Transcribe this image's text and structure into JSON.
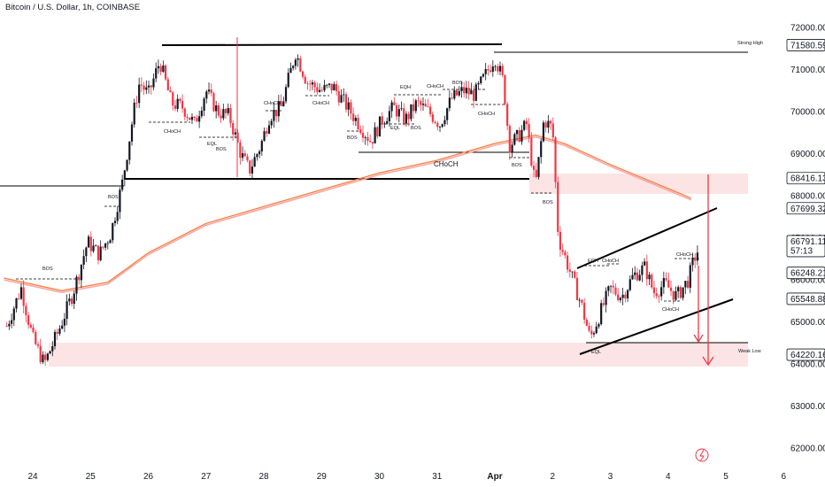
{
  "title": "Bitcoin / U.S. Dollar, 1h, COINBASE",
  "colors": {
    "up": "#131722",
    "down": "#f23645",
    "ma_fast": "#f57f3d",
    "ma_slow": "#f7a8a8",
    "zone": "#fde4e4",
    "arrow": "#f23645"
  },
  "chart_data": {
    "type": "candlestick",
    "xlabels": [
      "24",
      "25",
      "26",
      "27",
      "28",
      "29",
      "30",
      "31",
      "Apr",
      "2",
      "3",
      "4",
      "5",
      "6"
    ],
    "ylim": [
      61800,
      72400
    ],
    "yticks": [
      "72000.00",
      "71000.00",
      "70000.00",
      "69000.00",
      "68000.00",
      "67000.00",
      "66000.00",
      "65000.00",
      "64000.00",
      "63000.00",
      "62000.00"
    ],
    "price_tags": [
      {
        "label": "71580.59",
        "value": 71580.59
      },
      {
        "label": "68416.13",
        "value": 68416.13
      },
      {
        "label": "67699.32",
        "value": 67699.32
      },
      {
        "label": "66791.11",
        "value": 66791.11,
        "extra": "57:13"
      },
      {
        "label": "66248.21",
        "value": 66248.21
      },
      {
        "label": "65548.88",
        "value": 65548.88
      },
      {
        "label": "64220.16",
        "value": 64220.16
      }
    ],
    "close_series": [
      {
        "day": 23.55,
        "price": 64900
      },
      {
        "day": 23.8,
        "price": 65800
      },
      {
        "day": 24.0,
        "price": 64600
      },
      {
        "day": 24.2,
        "price": 64000
      },
      {
        "day": 24.45,
        "price": 64800
      },
      {
        "day": 24.7,
        "price": 65700
      },
      {
        "day": 24.95,
        "price": 66900
      },
      {
        "day": 25.15,
        "price": 66600
      },
      {
        "day": 25.35,
        "price": 67100
      },
      {
        "day": 25.55,
        "price": 68300
      },
      {
        "day": 25.75,
        "price": 70000
      },
      {
        "day": 25.85,
        "price": 70700
      },
      {
        "day": 26.0,
        "price": 70400
      },
      {
        "day": 26.2,
        "price": 71200
      },
      {
        "day": 26.4,
        "price": 70200
      },
      {
        "day": 26.6,
        "price": 70100
      },
      {
        "day": 26.8,
        "price": 69700
      },
      {
        "day": 27.0,
        "price": 70500
      },
      {
        "day": 27.2,
        "price": 70000
      },
      {
        "day": 27.4,
        "price": 69900
      },
      {
        "day": 27.6,
        "price": 69000
      },
      {
        "day": 27.75,
        "price": 68600
      },
      {
        "day": 27.95,
        "price": 69200
      },
      {
        "day": 28.1,
        "price": 69900
      },
      {
        "day": 28.3,
        "price": 70100
      },
      {
        "day": 28.55,
        "price": 71400
      },
      {
        "day": 28.75,
        "price": 70700
      },
      {
        "day": 29.0,
        "price": 70500
      },
      {
        "day": 29.2,
        "price": 70600
      },
      {
        "day": 29.4,
        "price": 70200
      },
      {
        "day": 29.6,
        "price": 69800
      },
      {
        "day": 29.85,
        "price": 69300
      },
      {
        "day": 30.05,
        "price": 69800
      },
      {
        "day": 30.25,
        "price": 70100
      },
      {
        "day": 30.45,
        "price": 69800
      },
      {
        "day": 30.65,
        "price": 70200
      },
      {
        "day": 30.85,
        "price": 70000
      },
      {
        "day": 31.05,
        "price": 69700
      },
      {
        "day": 31.25,
        "price": 70300
      },
      {
        "day": 31.45,
        "price": 70500
      },
      {
        "day": 31.65,
        "price": 70400
      },
      {
        "day": 31.85,
        "price": 70900
      },
      {
        "day": 32.0,
        "price": 71300
      },
      {
        "day": 32.15,
        "price": 70700
      },
      {
        "day": 32.25,
        "price": 69200
      },
      {
        "day": 32.4,
        "price": 69400
      },
      {
        "day": 32.55,
        "price": 69700
      },
      {
        "day": 32.7,
        "price": 68200
      },
      {
        "day": 32.85,
        "price": 69800
      },
      {
        "day": 33.0,
        "price": 69600
      },
      {
        "day": 33.1,
        "price": 67000
      },
      {
        "day": 33.3,
        "price": 66200
      },
      {
        "day": 33.5,
        "price": 65400
      },
      {
        "day": 33.65,
        "price": 64600
      },
      {
        "day": 33.85,
        "price": 65300
      },
      {
        "day": 34.0,
        "price": 65800
      },
      {
        "day": 34.2,
        "price": 65600
      },
      {
        "day": 34.4,
        "price": 66100
      },
      {
        "day": 34.6,
        "price": 66300
      },
      {
        "day": 34.75,
        "price": 65700
      },
      {
        "day": 34.95,
        "price": 65900
      },
      {
        "day": 35.15,
        "price": 65600
      },
      {
        "day": 35.35,
        "price": 66000
      },
      {
        "day": 35.45,
        "price": 66500
      },
      {
        "day": 35.55,
        "price": 66800
      }
    ],
    "ma_series": [
      {
        "day": 23.5,
        "price": 66000
      },
      {
        "day": 24.5,
        "price": 65700
      },
      {
        "day": 25.3,
        "price": 65900
      },
      {
        "day": 26.0,
        "price": 66600
      },
      {
        "day": 27.0,
        "price": 67300
      },
      {
        "day": 28.0,
        "price": 67700
      },
      {
        "day": 29.0,
        "price": 68100
      },
      {
        "day": 30.0,
        "price": 68500
      },
      {
        "day": 31.0,
        "price": 68800
      },
      {
        "day": 32.0,
        "price": 69200
      },
      {
        "day": 32.7,
        "price": 69400
      },
      {
        "day": 33.2,
        "price": 69200
      },
      {
        "day": 34.0,
        "price": 68700
      },
      {
        "day": 34.7,
        "price": 68300
      },
      {
        "day": 35.4,
        "price": 67900
      }
    ],
    "annotations": [
      "Strong High",
      "Weak Low",
      "CHoCH",
      "BOS",
      "EQH",
      "EQL"
    ]
  }
}
